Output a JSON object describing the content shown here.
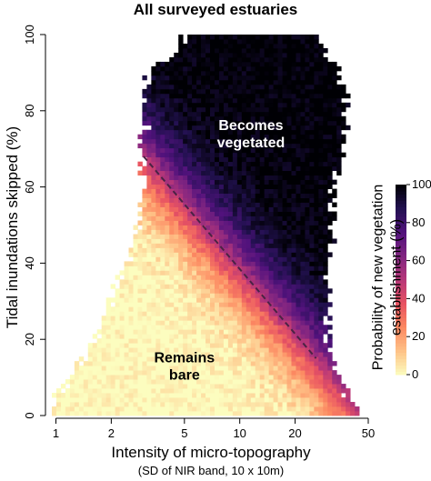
{
  "chart_data": {
    "type": "heatmap",
    "title": "All surveyed estuaries",
    "xlabel": "Intensity of micro-topography",
    "xlabel_sub": "(SD of NIR band, 10 x 10m)",
    "ylabel": "Tidal inundations skipped (%)",
    "x_scale": "log",
    "xlim": [
      0.95,
      50
    ],
    "ylim": [
      0,
      100
    ],
    "x_ticks": [
      1,
      2,
      5,
      10,
      20,
      50
    ],
    "y_ticks": [
      0,
      20,
      40,
      60,
      80,
      100
    ],
    "grid": false,
    "value_label": "Probability of new vegetation establishment (%)",
    "value_range": [
      0,
      100
    ],
    "colorbar_ticks": [
      0,
      20,
      40,
      60,
      80,
      100
    ],
    "colormap": [
      "#fcfdbf",
      "#fec287",
      "#fc8961",
      "#e85362",
      "#b73779",
      "#812581",
      "#51127c",
      "#221150",
      "#000004"
    ],
    "data_coverage": [
      {
        "y": 0,
        "x_min": 1.0,
        "x_max": 45
      },
      {
        "y": 5,
        "x_min": 1.0,
        "x_max": 38
      },
      {
        "y": 10,
        "x_min": 1.2,
        "x_max": 34
      },
      {
        "y": 20,
        "x_min": 1.6,
        "x_max": 30
      },
      {
        "y": 30,
        "x_min": 2.0,
        "x_max": 30
      },
      {
        "y": 40,
        "x_min": 2.4,
        "x_max": 30
      },
      {
        "y": 50,
        "x_min": 2.8,
        "x_max": 32
      },
      {
        "y": 60,
        "x_min": 3.0,
        "x_max": 33
      },
      {
        "y": 70,
        "x_min": 3.0,
        "x_max": 36
      },
      {
        "y": 80,
        "x_min": 3.0,
        "x_max": 38
      },
      {
        "y": 90,
        "x_min": 3.2,
        "x_max": 35
      },
      {
        "y": 95,
        "x_min": 4.5,
        "x_max": 30
      },
      {
        "y": 100,
        "x_min": 5.0,
        "x_max": 25
      }
    ],
    "threshold_line": {
      "style": "dashed",
      "points": [
        {
          "x": 3.0,
          "y": 68
        },
        {
          "x": 26,
          "y": 15
        }
      ]
    },
    "annotations": [
      {
        "text_lines": [
          "Becomes",
          "vegetated"
        ],
        "x": 11.5,
        "y": 75
      },
      {
        "text_lines": [
          "Remains",
          "bare"
        ],
        "x": 5.0,
        "y": 14
      }
    ]
  }
}
